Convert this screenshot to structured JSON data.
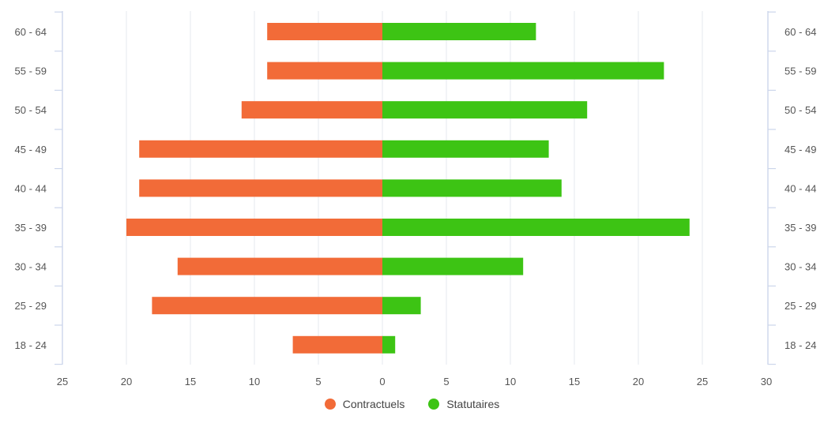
{
  "chart_data": {
    "type": "bar",
    "orientation": "horizontal",
    "categories": [
      "60 - 64",
      "55 - 59",
      "50 - 54",
      "45 - 49",
      "40 - 44",
      "35 - 39",
      "30 - 34",
      "25 - 29",
      "18 - 24"
    ],
    "series": [
      {
        "name": "Contractuels",
        "color": "#f26b38",
        "direction": "left",
        "values": [
          9,
          9,
          11,
          19,
          19,
          20,
          16,
          18,
          7
        ]
      },
      {
        "name": "Statutaires",
        "color": "#3dc414",
        "direction": "right",
        "values": [
          12,
          22,
          16,
          13,
          14,
          24,
          11,
          3,
          1
        ]
      }
    ],
    "x_ticks_left": [
      "25",
      "20",
      "15",
      "10",
      "5"
    ],
    "x_ticks_right": [
      "0",
      "5",
      "10",
      "15",
      "20",
      "25",
      "30"
    ],
    "x_range": [
      -25,
      30
    ],
    "grid": true,
    "legend_position": "bottom-center",
    "title": "",
    "xlabel": "",
    "ylabel": ""
  }
}
